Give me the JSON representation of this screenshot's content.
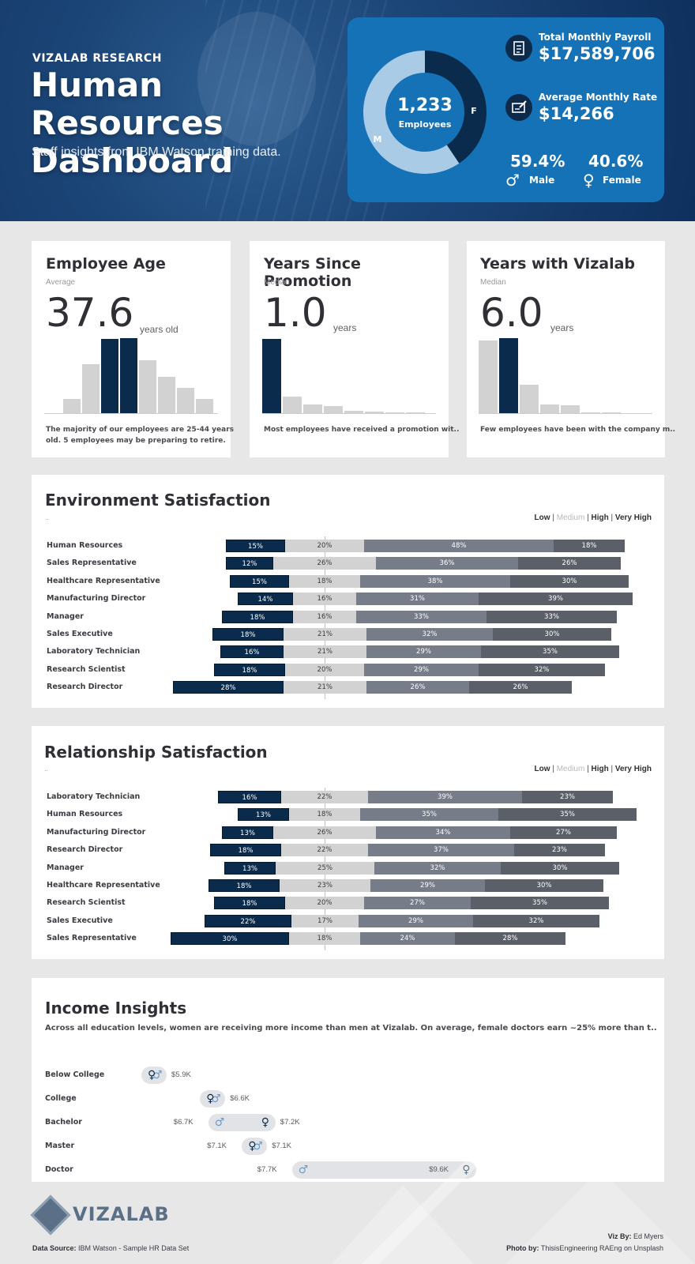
{
  "header": {
    "overline": "VIZALAB RESEARCH",
    "title_line1": "Human Resources",
    "title_line2": "Dashboard",
    "subtitle": "Staff insights from IBM Watson training data."
  },
  "kpis": {
    "donut": {
      "total": "1,233",
      "label": "Employees",
      "male_label": "M",
      "female_label": "F",
      "male_fraction": 0.594
    },
    "payroll": {
      "label": "Total Monthly Payroll",
      "value": "$17,589,706",
      "icon": "document-dollar-icon"
    },
    "rate": {
      "label": "Average Monthly Rate",
      "value": "$14,266",
      "icon": "check-card-icon"
    },
    "male": {
      "pct": "59.4%",
      "label": "Male",
      "symbol": "♂"
    },
    "female": {
      "pct": "40.6%",
      "label": "Female",
      "symbol": "♀"
    },
    "colors": {
      "card": "#1572b6",
      "male_ring": "#a9cbe6",
      "female_ring": "#0b2b4c"
    }
  },
  "age": {
    "title": "Employee Age",
    "sub": "Average",
    "value": "37.6",
    "unit": "years old",
    "note_line1": "The majority of our employees are 25-44 years",
    "note_line2": "old. 5 employees may be preparing to retire."
  },
  "promotion": {
    "title": "Years Since Promotion",
    "sub": "Median",
    "value": "1.0",
    "unit": "years",
    "note": "Most employees have received a promotion wit.."
  },
  "tenure": {
    "title": "Years with Vizalab",
    "sub": "Median",
    "value": "6.0",
    "unit": "years",
    "note": "Few employees have been with the company m.."
  },
  "env": {
    "title": "Environment Satisfaction",
    "ellipsis": ".."
  },
  "rel": {
    "title": "Relationship Satisfaction",
    "ellipsis": ".."
  },
  "legend": {
    "low": "Low",
    "medium": "Medium",
    "high": "High",
    "very_high": "Very High",
    "sep": "|"
  },
  "income": {
    "title": "Income Insights",
    "subtitle": "Across all education levels, women are receiving more income than men at Vizalab. On average, female doctors earn ~25% more than t..",
    "male_symbol": "♂",
    "female_symbol": "♀"
  },
  "footer": {
    "brand": "VIZALAB",
    "source_label": "Data Source:",
    "source": "IBM Watson - Sample HR Data Set",
    "viz_label": "Viz By:",
    "viz": "Ed Myers",
    "photo_label": "Photo by:",
    "photo": "ThisisEngineering RAEng on Unsplash"
  },
  "chart_data": [
    {
      "type": "bar",
      "name": "age_histogram",
      "title": "Employee Age",
      "categories": [
        "b1",
        "b2",
        "b3",
        "b4",
        "b5",
        "b6",
        "b7",
        "b8",
        "b9"
      ],
      "values": [
        0,
        18,
        63,
        96,
        97,
        68,
        47,
        33,
        18
      ],
      "highlight": [
        3,
        4
      ]
    },
    {
      "type": "bar",
      "name": "promotion_histogram",
      "title": "Years Since Promotion",
      "categories": [
        "b1",
        "b2",
        "b3",
        "b4",
        "b5",
        "b6",
        "b7",
        "b8"
      ],
      "values": [
        96,
        21,
        11,
        9,
        3,
        2,
        1,
        1
      ],
      "highlight": [
        0
      ]
    },
    {
      "type": "bar",
      "name": "tenure_histogram",
      "title": "Years with Vizalab",
      "categories": [
        "b1",
        "b2",
        "b3",
        "b4",
        "b5",
        "b6",
        "b7",
        "b8"
      ],
      "values": [
        94,
        97,
        37,
        11,
        10,
        1,
        1,
        0
      ],
      "highlight": [
        1
      ]
    },
    {
      "type": "bar",
      "name": "environment_satisfaction",
      "stacked": "diverging",
      "title": "Environment Satisfaction",
      "categories": [
        "Human Resources",
        "Sales Representative",
        "Healthcare Representative",
        "Manufacturing Director",
        "Manager",
        "Sales Executive",
        "Laboratory Technician",
        "Research Scientist",
        "Research Director"
      ],
      "series": [
        {
          "name": "Low",
          "values": [
            15,
            12,
            15,
            14,
            18,
            18,
            16,
            18,
            28
          ]
        },
        {
          "name": "Medium",
          "values": [
            20,
            26,
            18,
            16,
            16,
            21,
            21,
            20,
            21
          ]
        },
        {
          "name": "High",
          "values": [
            48,
            36,
            38,
            31,
            33,
            32,
            29,
            29,
            26
          ]
        },
        {
          "name": "Very High",
          "values": [
            18,
            26,
            30,
            39,
            33,
            30,
            35,
            32,
            26
          ]
        }
      ]
    },
    {
      "type": "bar",
      "name": "relationship_satisfaction",
      "stacked": "diverging",
      "title": "Relationship Satisfaction",
      "categories": [
        "Laboratory Technician",
        "Human Resources",
        "Manufacturing Director",
        "Research Director",
        "Manager",
        "Healthcare Representative",
        "Research Scientist",
        "Sales Executive",
        "Sales Representative"
      ],
      "series": [
        {
          "name": "Low",
          "values": [
            16,
            13,
            13,
            18,
            13,
            18,
            18,
            22,
            30
          ]
        },
        {
          "name": "Medium",
          "values": [
            22,
            18,
            26,
            22,
            25,
            23,
            20,
            17,
            18
          ]
        },
        {
          "name": "High",
          "values": [
            39,
            35,
            34,
            37,
            32,
            29,
            27,
            29,
            24
          ]
        },
        {
          "name": "Very High",
          "values": [
            23,
            35,
            27,
            23,
            30,
            30,
            35,
            32,
            28
          ]
        }
      ]
    },
    {
      "type": "scatter",
      "name": "income_dumbbell",
      "title": "Income Insights",
      "categories": [
        "Below College",
        "College",
        "Bachelor",
        "Master",
        "Doctor"
      ],
      "series": [
        {
          "name": "Male",
          "values": [
            5.9,
            6.6,
            6.7,
            7.1,
            7.7
          ],
          "labels": [
            "",
            "",
            "$6.7K",
            "$7.1K",
            "$7.7K"
          ]
        },
        {
          "name": "Female",
          "values": [
            5.9,
            6.6,
            7.2,
            7.1,
            9.6
          ],
          "labels": [
            "$5.9K",
            "$6.6K",
            "$7.2K",
            "$7.1K",
            "$9.6K"
          ]
        }
      ]
    }
  ]
}
